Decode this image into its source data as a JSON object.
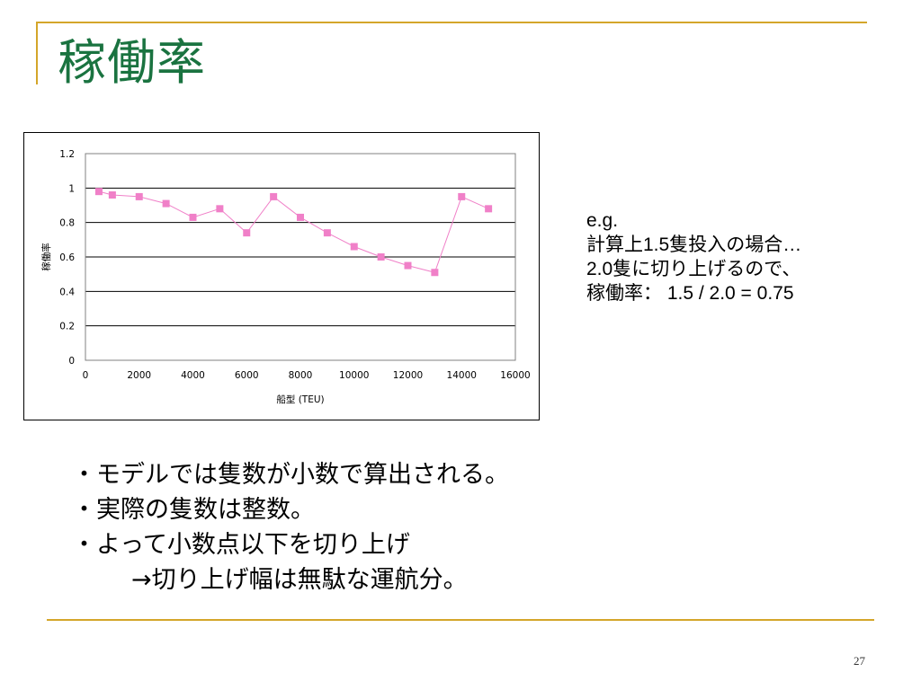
{
  "slide": {
    "title": "稼働率",
    "page_number": "27"
  },
  "note": {
    "lines": [
      "e.g.",
      "計算上1.5隻投入の場合…",
      "2.0隻に切り上げるので、",
      "稼働率：  1.5 / 2.0 = 0.75"
    ]
  },
  "bullets": [
    "・モデルでは隻数が小数で算出される。",
    "・実際の隻数は整数。",
    "・よって小数点以下を切り上げ",
    "→切り上げ幅は無駄な運航分。"
  ],
  "chart_data": {
    "type": "line",
    "title": "",
    "xlabel": "船型 (TEU)",
    "ylabel": "稼働率",
    "xlim": [
      0,
      16000
    ],
    "ylim": [
      0,
      1.2
    ],
    "x_ticks": [
      0,
      2000,
      4000,
      6000,
      8000,
      10000,
      12000,
      14000,
      16000
    ],
    "y_ticks": [
      0,
      0.2,
      0.4,
      0.6,
      0.8,
      1,
      1.2
    ],
    "grid": "horizontal",
    "legend": "none",
    "series": [
      {
        "color": "#f080c8",
        "marker": "square",
        "points": [
          {
            "x": 500,
            "y": 0.98
          },
          {
            "x": 1000,
            "y": 0.96
          },
          {
            "x": 2000,
            "y": 0.95
          },
          {
            "x": 3000,
            "y": 0.91
          },
          {
            "x": 4000,
            "y": 0.83
          },
          {
            "x": 5000,
            "y": 0.88
          },
          {
            "x": 6000,
            "y": 0.74
          },
          {
            "x": 7000,
            "y": 0.95
          },
          {
            "x": 8000,
            "y": 0.83
          },
          {
            "x": 9000,
            "y": 0.74
          },
          {
            "x": 10000,
            "y": 0.66
          },
          {
            "x": 11000,
            "y": 0.6
          },
          {
            "x": 12000,
            "y": 0.55
          },
          {
            "x": 13000,
            "y": 0.51
          },
          {
            "x": 14000,
            "y": 0.95
          },
          {
            "x": 15000,
            "y": 0.88
          }
        ]
      }
    ]
  },
  "colors": {
    "title": "#1a7340",
    "accent_rule": "#d4a62a",
    "series": "#f080c8"
  }
}
